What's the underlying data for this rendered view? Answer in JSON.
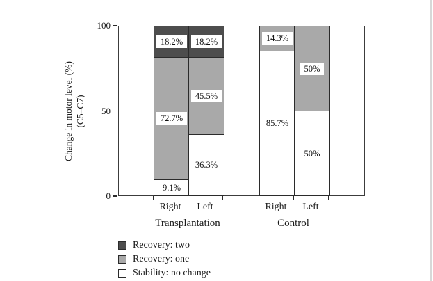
{
  "figure": {
    "background": "#ffffff",
    "edge_line_color": "#d8d8d8"
  },
  "chart_data": {
    "type": "bar",
    "stacked": true,
    "title": "",
    "ylabel_line1": "Change in motor level (%)",
    "ylabel_line2": "(C5–C7)",
    "ylim": [
      0,
      100
    ],
    "yticks": [
      "0",
      "50",
      "100"
    ],
    "ytick_values": [
      0,
      50,
      100
    ],
    "grid": false,
    "legend_position": "bottom-left",
    "x_tick_labels": [
      "Right",
      "Left",
      "Right",
      "Left"
    ],
    "group_labels": [
      "Transplantation",
      "Control"
    ],
    "series": [
      {
        "name": "Stability: no change",
        "color": "#ffffff"
      },
      {
        "name": "Recovery: one",
        "color": "#a9a9a9"
      },
      {
        "name": "Recovery: two",
        "color": "#4d4d4d"
      }
    ],
    "bars": [
      {
        "group": "Transplantation",
        "category": "Right",
        "segments": [
          {
            "series": "Stability: no change",
            "value": 9.1,
            "label": "9.1%"
          },
          {
            "series": "Recovery: one",
            "value": 72.7,
            "label": "72.7%"
          },
          {
            "series": "Recovery: two",
            "value": 18.2,
            "label": "18.2%"
          }
        ]
      },
      {
        "group": "Transplantation",
        "category": "Left",
        "segments": [
          {
            "series": "Stability: no change",
            "value": 36.3,
            "label": "36.3%"
          },
          {
            "series": "Recovery: one",
            "value": 45.5,
            "label": "45.5%"
          },
          {
            "series": "Recovery: two",
            "value": 18.2,
            "label": "18.2%"
          }
        ]
      },
      {
        "group": "Control",
        "category": "Right",
        "segments": [
          {
            "series": "Stability: no change",
            "value": 85.7,
            "label": "85.7%"
          },
          {
            "series": "Recovery: one",
            "value": 14.3,
            "label": "14.3%"
          },
          {
            "series": "Recovery: two",
            "value": 0,
            "label": ""
          }
        ]
      },
      {
        "group": "Control",
        "category": "Left",
        "segments": [
          {
            "series": "Stability: no change",
            "value": 50,
            "label": "50%"
          },
          {
            "series": "Recovery: one",
            "value": 50,
            "label": "50%"
          },
          {
            "series": "Recovery: two",
            "value": 0,
            "label": ""
          }
        ]
      }
    ],
    "legend": [
      {
        "label": "Recovery: two",
        "color": "#4d4d4d"
      },
      {
        "label": "Recovery: one",
        "color": "#a9a9a9"
      },
      {
        "label": "Stability: no change",
        "color": "#ffffff"
      }
    ]
  }
}
